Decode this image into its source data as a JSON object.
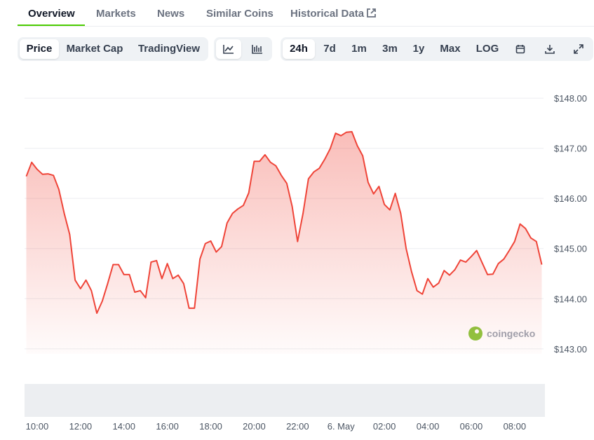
{
  "tabs": [
    "Overview",
    "Markets",
    "News",
    "Similar Coins",
    "Historical Data"
  ],
  "view_buttons": [
    "Price",
    "Market Cap",
    "TradingView"
  ],
  "range_buttons": [
    "24h",
    "7d",
    "1m",
    "3m",
    "1y",
    "Max",
    "LOG"
  ],
  "watermark": "coingecko",
  "chart_data": {
    "type": "area",
    "color": "#ef4438",
    "xlim": [
      9.42,
      33.33
    ],
    "xticks": [
      {
        "value": 10,
        "label": "10:00"
      },
      {
        "value": 12,
        "label": "12:00"
      },
      {
        "value": 14,
        "label": "14:00"
      },
      {
        "value": 16,
        "label": "16:00"
      },
      {
        "value": 18,
        "label": "18:00"
      },
      {
        "value": 20,
        "label": "20:00"
      },
      {
        "value": 22,
        "label": "22:00"
      },
      {
        "value": 24,
        "label": "6. May"
      },
      {
        "value": 26,
        "label": "02:00"
      },
      {
        "value": 28,
        "label": "04:00"
      },
      {
        "value": 30,
        "label": "06:00"
      },
      {
        "value": 32,
        "label": "08:00"
      }
    ],
    "ylim": [
      142.9,
      148.56
    ],
    "yticks": [
      {
        "value": 143,
        "label": "$143.00"
      },
      {
        "value": 144,
        "label": "$144.00"
      },
      {
        "value": 145,
        "label": "$145.00"
      },
      {
        "value": 146,
        "label": "$146.00"
      },
      {
        "value": 147,
        "label": "$147.00"
      },
      {
        "value": 148,
        "label": "$148.00"
      }
    ],
    "grid": true,
    "x": [
      9.5,
      9.75,
      10,
      10.25,
      10.5,
      10.75,
      11,
      11.25,
      11.5,
      11.75,
      12,
      12.25,
      12.5,
      12.75,
      13,
      13.25,
      13.5,
      13.75,
      14,
      14.25,
      14.5,
      14.75,
      15,
      15.25,
      15.5,
      15.75,
      16,
      16.25,
      16.5,
      16.75,
      17,
      17.25,
      17.5,
      17.75,
      18,
      18.25,
      18.5,
      18.75,
      19,
      19.25,
      19.5,
      19.75,
      20,
      20.25,
      20.5,
      20.75,
      21,
      21.25,
      21.5,
      21.75,
      22,
      22.25,
      22.5,
      22.75,
      23,
      23.25,
      23.5,
      23.75,
      24,
      24.25,
      24.5,
      24.75,
      25,
      25.25,
      25.5,
      25.75,
      26,
      26.25,
      26.5,
      26.75,
      27,
      27.25,
      27.5,
      27.75,
      28,
      28.25,
      28.5,
      28.75,
      29,
      29.25,
      29.5,
      29.75,
      30,
      30.25,
      30.5,
      30.75,
      31,
      31.25,
      31.5,
      31.75,
      32,
      32.25,
      32.5,
      32.75,
      33,
      33.25
    ],
    "values": [
      146.44,
      146.72,
      146.58,
      146.48,
      146.49,
      146.46,
      146.18,
      145.7,
      145.28,
      144.37,
      144.2,
      144.37,
      144.16,
      143.71,
      143.95,
      144.3,
      144.68,
      144.68,
      144.48,
      144.48,
      144.13,
      144.16,
      144.02,
      144.73,
      144.76,
      144.4,
      144.7,
      144.4,
      144.47,
      144.3,
      143.81,
      143.81,
      144.79,
      145.1,
      145.15,
      144.93,
      145.04,
      145.51,
      145.7,
      145.79,
      145.86,
      146.11,
      146.74,
      146.74,
      146.87,
      146.72,
      146.65,
      146.46,
      146.3,
      145.84,
      145.14,
      145.7,
      146.39,
      146.53,
      146.6,
      146.78,
      146.99,
      147.3,
      147.25,
      147.32,
      147.33,
      147.05,
      146.85,
      146.32,
      146.09,
      146.24,
      145.88,
      145.77,
      146.1,
      145.7,
      145.0,
      144.54,
      144.16,
      144.09,
      144.4,
      144.23,
      144.31,
      144.56,
      144.47,
      144.58,
      144.77,
      144.73,
      144.84,
      144.96,
      144.72,
      144.48,
      144.49,
      144.7,
      144.79,
      144.96,
      145.14,
      145.49,
      145.4,
      145.21,
      145.14,
      144.68
    ]
  }
}
